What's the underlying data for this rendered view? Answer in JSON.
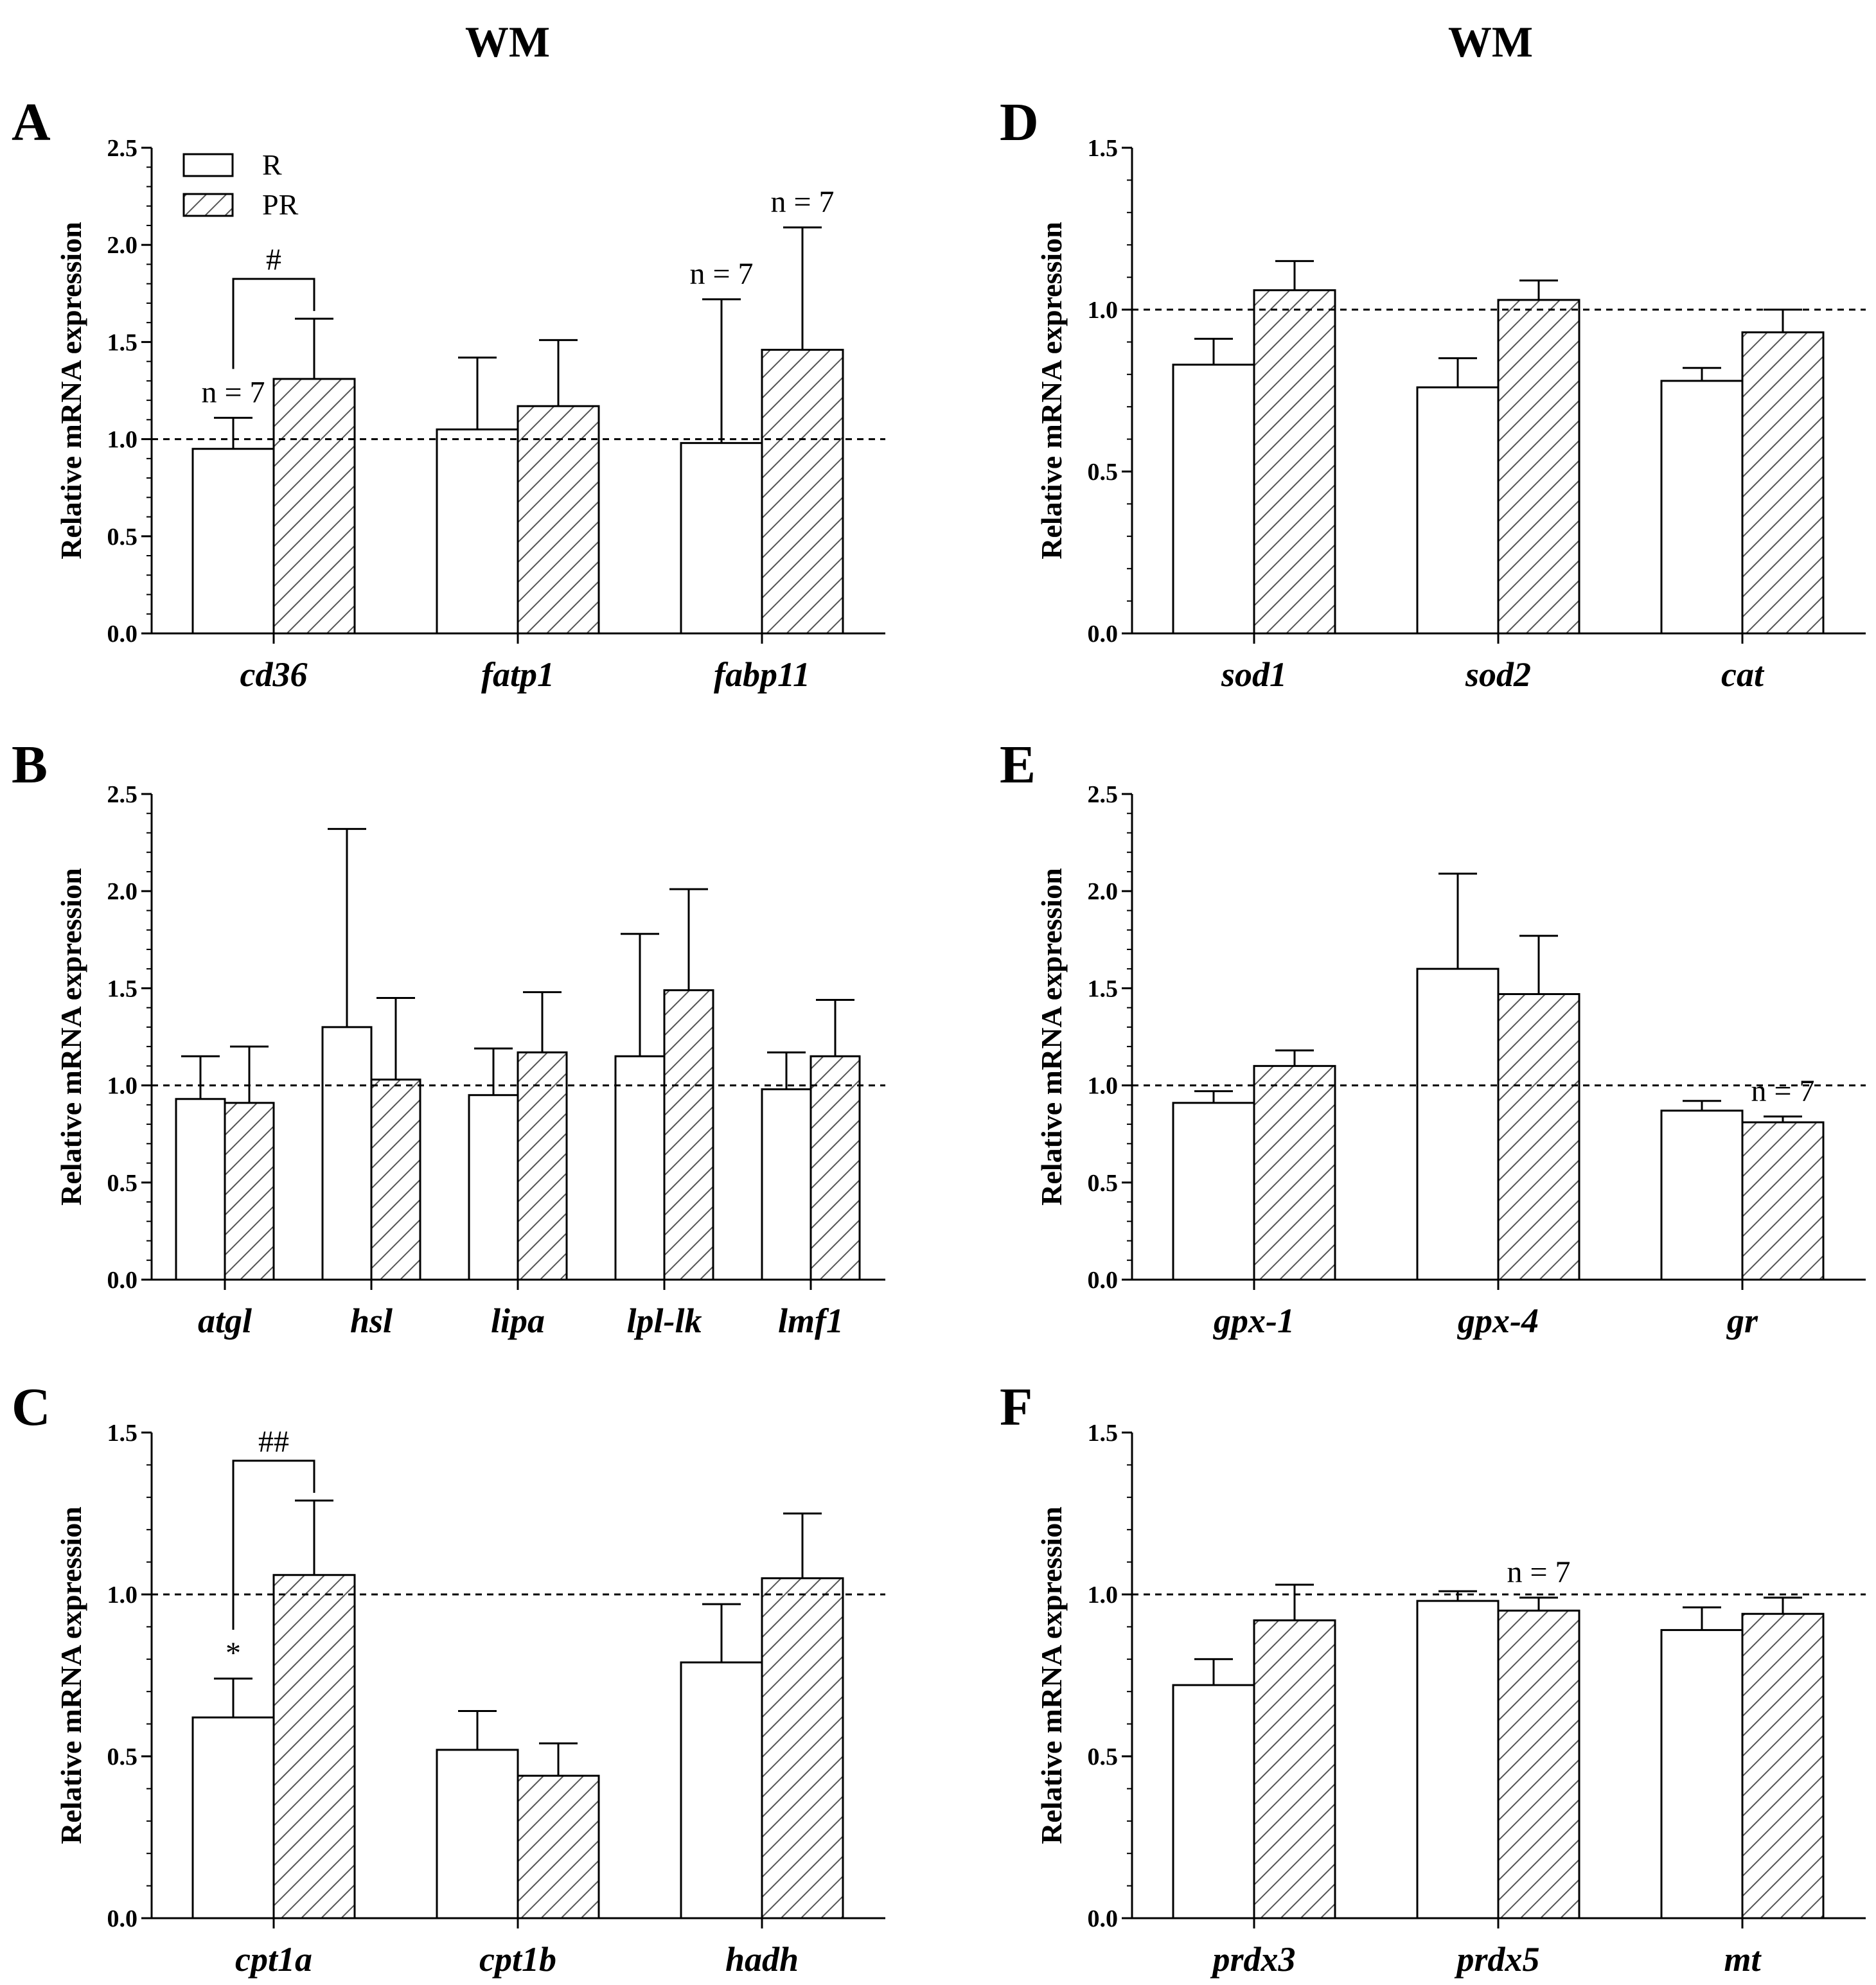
{
  "column_titles": [
    "WM",
    "WM"
  ],
  "chart_data": [
    {
      "panel": "A",
      "type": "bar",
      "ylabel": "Relative mRNA expression",
      "ylim": [
        0,
        2.5
      ],
      "yticks": [
        "0.0",
        "0.5",
        "1.0",
        "1.5",
        "2.0",
        "2.5"
      ],
      "reference_line": 1.0,
      "categories": [
        "cd36",
        "fatp1",
        "fabp11"
      ],
      "series": [
        {
          "name": "R",
          "values": [
            0.95,
            1.05,
            0.98
          ],
          "errors": [
            0.16,
            0.37,
            0.74
          ]
        },
        {
          "name": "PR",
          "values": [
            1.31,
            1.17,
            1.46
          ],
          "errors": [
            0.31,
            0.34,
            0.63
          ]
        }
      ],
      "legend": [
        "R",
        "PR"
      ],
      "annotations": [
        {
          "text": "n = 7",
          "category": 0,
          "series": 0
        },
        {
          "text": "n = 7",
          "category": 2,
          "series": 0
        },
        {
          "text": "n = 7",
          "category": 2,
          "series": 1
        }
      ],
      "brackets": [
        {
          "text": "#",
          "category": 0
        }
      ]
    },
    {
      "panel": "B",
      "type": "bar",
      "ylabel": "Relative mRNA expression",
      "ylim": [
        0,
        2.5
      ],
      "yticks": [
        "0.0",
        "0.5",
        "1.0",
        "1.5",
        "2.0",
        "2.5"
      ],
      "reference_line": 1.0,
      "categories": [
        "atgl",
        "hsl",
        "lipa",
        "lpl-lk",
        "lmf1"
      ],
      "series": [
        {
          "name": "R",
          "values": [
            0.93,
            1.3,
            0.95,
            1.15,
            0.98
          ],
          "errors": [
            0.22,
            1.02,
            0.24,
            0.63,
            0.19
          ]
        },
        {
          "name": "PR",
          "values": [
            0.91,
            1.03,
            1.17,
            1.49,
            1.15
          ],
          "errors": [
            0.29,
            0.42,
            0.31,
            0.52,
            0.29
          ]
        }
      ]
    },
    {
      "panel": "C",
      "type": "bar",
      "ylabel": "Relative mRNA expression",
      "ylim": [
        0,
        1.5
      ],
      "yticks": [
        "0.0",
        "0.5",
        "1.0",
        "1.5"
      ],
      "reference_line": 1.0,
      "categories": [
        "cpt1a",
        "cpt1b",
        "hadh"
      ],
      "series": [
        {
          "name": "R",
          "values": [
            0.62,
            0.52,
            0.79
          ],
          "errors": [
            0.12,
            0.12,
            0.18
          ]
        },
        {
          "name": "PR",
          "values": [
            1.06,
            0.44,
            1.05
          ],
          "errors": [
            0.23,
            0.1,
            0.2
          ]
        }
      ],
      "annotations": [
        {
          "text": "*",
          "category": 0,
          "series": 0
        }
      ],
      "brackets": [
        {
          "text": "##",
          "category": 0
        }
      ]
    },
    {
      "panel": "D",
      "type": "bar",
      "ylabel": "Relative mRNA expression",
      "ylim": [
        0,
        1.5
      ],
      "yticks": [
        "0.0",
        "0.5",
        "1.0",
        "1.5"
      ],
      "reference_line": 1.0,
      "categories": [
        "sod1",
        "sod2",
        "cat"
      ],
      "series": [
        {
          "name": "R",
          "values": [
            0.83,
            0.76,
            0.78
          ],
          "errors": [
            0.08,
            0.09,
            0.04
          ]
        },
        {
          "name": "PR",
          "values": [
            1.06,
            1.03,
            0.93
          ],
          "errors": [
            0.09,
            0.06,
            0.07
          ]
        }
      ]
    },
    {
      "panel": "E",
      "type": "bar",
      "ylabel": "Relative mRNA expression",
      "ylim": [
        0,
        2.5
      ],
      "yticks": [
        "0.0",
        "0.5",
        "1.0",
        "1.5",
        "2.0",
        "2.5"
      ],
      "reference_line": 1.0,
      "categories": [
        "gpx-1",
        "gpx-4",
        "gr"
      ],
      "series": [
        {
          "name": "R",
          "values": [
            0.91,
            1.6,
            0.87
          ],
          "errors": [
            0.06,
            0.49,
            0.05
          ]
        },
        {
          "name": "PR",
          "values": [
            1.1,
            1.47,
            0.81
          ],
          "errors": [
            0.08,
            0.3,
            0.03
          ]
        }
      ],
      "annotations": [
        {
          "text": "n = 7",
          "category": 2,
          "series": 1
        }
      ]
    },
    {
      "panel": "F",
      "type": "bar",
      "ylabel": "Relative mRNA expression",
      "ylim": [
        0,
        1.5
      ],
      "yticks": [
        "0.0",
        "0.5",
        "1.0",
        "1.5"
      ],
      "reference_line": 1.0,
      "categories": [
        "prdx3",
        "prdx5",
        "mt"
      ],
      "series": [
        {
          "name": "R",
          "values": [
            0.72,
            0.98,
            0.89
          ],
          "errors": [
            0.08,
            0.03,
            0.07
          ]
        },
        {
          "name": "PR",
          "values": [
            0.92,
            0.95,
            0.94
          ],
          "errors": [
            0.11,
            0.04,
            0.05
          ]
        }
      ],
      "annotations": [
        {
          "text": "n = 7",
          "category": 1,
          "series": 1
        }
      ]
    }
  ]
}
